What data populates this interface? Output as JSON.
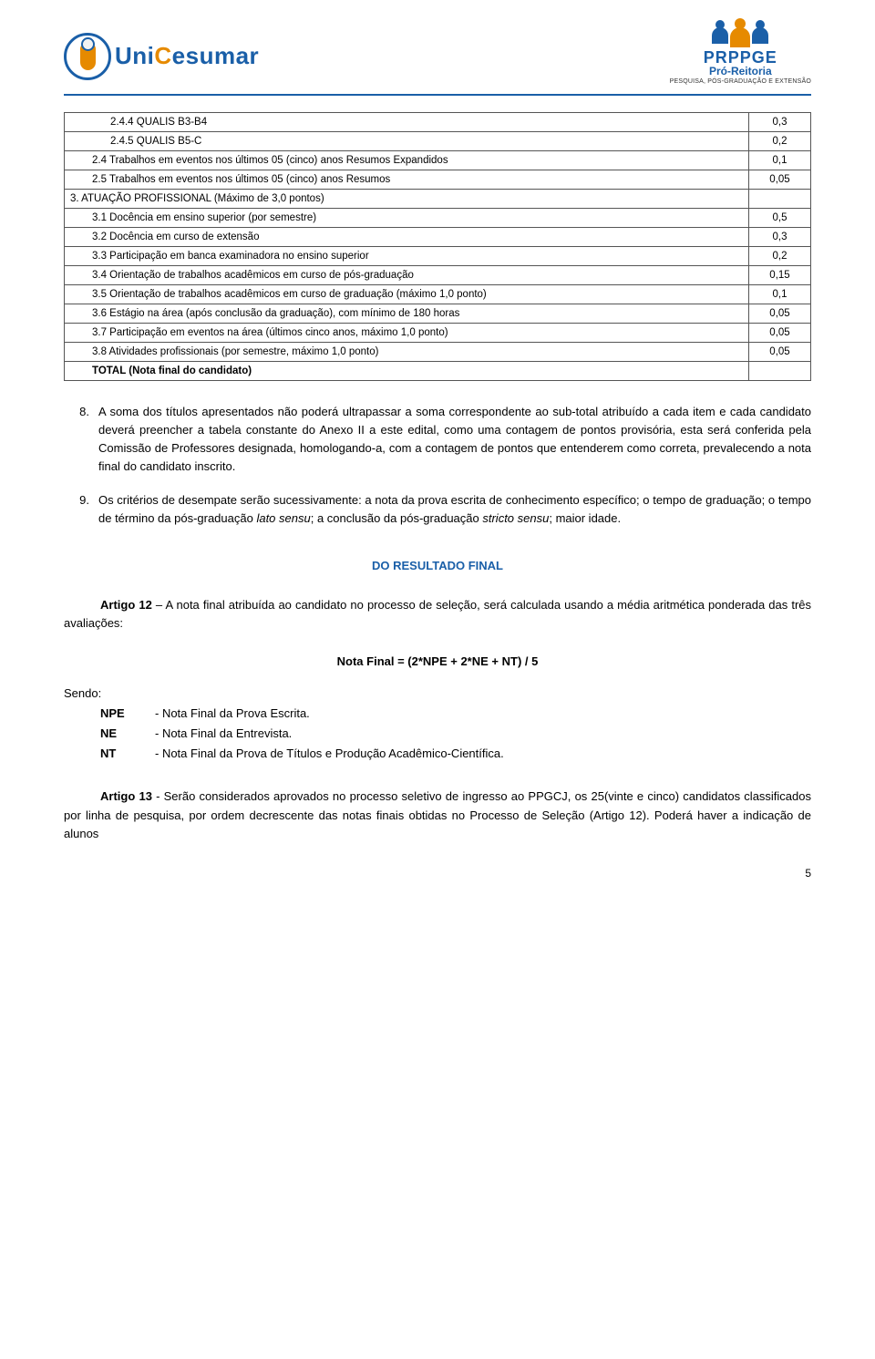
{
  "header": {
    "brand_prefix": "Uni",
    "brand_mid": "C",
    "brand_suffix": "esumar",
    "prppge_title": "PRPPGE",
    "prppge_sub": "Pró-Reitoria",
    "prppge_tag": "PESQUISA, PÓS-GRADUAÇÃO E EXTENSÃO"
  },
  "table": {
    "rows": [
      {
        "label": "2.4.4 QUALIS B3-B4",
        "value": "0,3",
        "class": "indent2"
      },
      {
        "label": "2.4.5 QUALIS B5-C",
        "value": "0,2",
        "class": "indent2"
      },
      {
        "label": "2.4 Trabalhos em eventos nos últimos 05 (cinco) anos Resumos Expandidos",
        "value": "0,1",
        "class": "indent1"
      },
      {
        "label": "2.5 Trabalhos em eventos nos últimos 05 (cinco) anos Resumos",
        "value": "0,05",
        "class": "indent1"
      },
      {
        "label": "3. ATUAÇÃO PROFISSIONAL (Máximo de 3,0 pontos)",
        "value": "",
        "class": ""
      },
      {
        "label": "3.1 Docência em ensino superior (por semestre)",
        "value": "0,5",
        "class": "indent1"
      },
      {
        "label": "3.2 Docência em curso de extensão",
        "value": "0,3",
        "class": "indent1"
      },
      {
        "label": "3.3 Participação em banca examinadora no ensino superior",
        "value": "0,2",
        "class": "indent1"
      },
      {
        "label": "3.4 Orientação de trabalhos acadêmicos em curso de pós-graduação",
        "value": "0,15",
        "class": "indent1"
      },
      {
        "label": "3.5 Orientação de trabalhos acadêmicos em curso de graduação (máximo 1,0 ponto)",
        "value": "0,1",
        "class": "indent1"
      },
      {
        "label": "3.6 Estágio na área (após conclusão da graduação), com mínimo de 180 horas",
        "value": "0,05",
        "class": "indent1"
      },
      {
        "label": "3.7 Participação em eventos na área (últimos cinco anos, máximo 1,0 ponto)",
        "value": "0,05",
        "class": "indent1"
      },
      {
        "label": "3.8 Atividades profissionais (por semestre, máximo 1,0 ponto)",
        "value": "0,05",
        "class": "indent1"
      },
      {
        "label": "TOTAL (Nota final do candidato)",
        "value": "",
        "class": "bold"
      }
    ]
  },
  "items": {
    "n8": "8.",
    "t8": "A soma dos títulos apresentados não poderá ultrapassar a soma correspondente ao sub-total atribuído a cada item e cada candidato deverá preencher a tabela constante do Anexo II a este edital, como uma contagem de pontos provisória, esta será conferida pela Comissão de Professores designada, homologando-a, com a contagem de pontos que entenderem como correta, prevalecendo a nota final do candidato inscrito.",
    "n9": "9.",
    "t9_a": "Os critérios de desempate serão sucessivamente: a nota da prova escrita de conhecimento específico; o tempo de graduação; o tempo de término da pós-graduação ",
    "t9_i1": "lato sensu",
    "t9_b": "; a conclusão da pós-graduação ",
    "t9_i2": "stricto sensu",
    "t9_c": "; maior idade."
  },
  "section_title": "DO RESULTADO FINAL",
  "art12_lead": "Artigo 12",
  "art12": " – A nota final atribuída ao candidato no processo de seleção, será calculada usando a média aritmética ponderada das três avaliações:",
  "formula": "Nota Final = (2*NPE + 2*NE + NT) / 5",
  "sendo": "Sendo:",
  "defs": [
    {
      "k": "NPE",
      "d": "- Nota Final da Prova Escrita."
    },
    {
      "k": "NE",
      "d": "- Nota Final da Entrevista."
    },
    {
      "k": "NT",
      "d": "- Nota Final da Prova de Títulos e Produção Acadêmico-Científica."
    }
  ],
  "art13_lead": "Artigo 13",
  "art13": " - Serão considerados aprovados no processo seletivo de ingresso ao PPGCJ, os 25(vinte e cinco) candidatos classificados por linha de pesquisa, por ordem decrescente das notas finais obtidas no Processo de Seleção (Artigo 12).  Poderá haver a indicação de alunos",
  "page_number": "5"
}
